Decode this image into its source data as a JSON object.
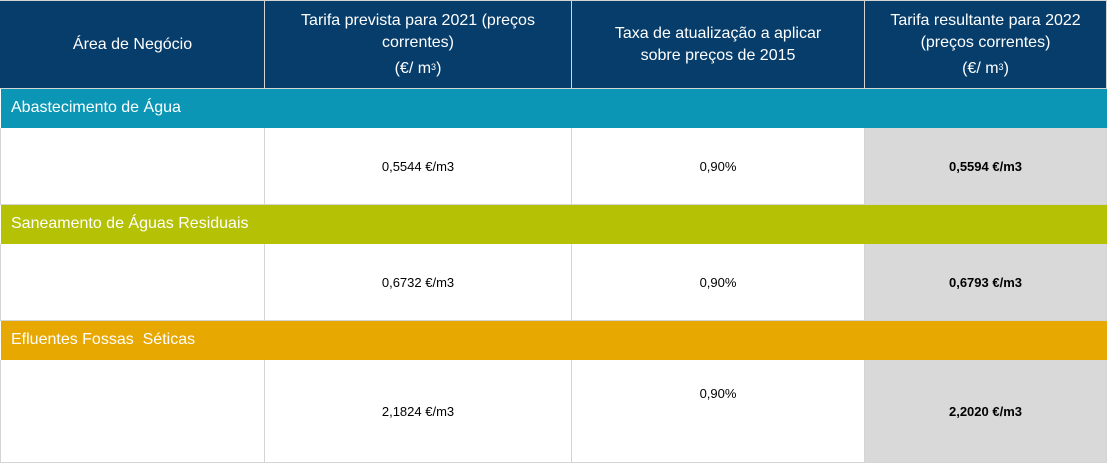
{
  "header": {
    "col_area": "Área de Negócio",
    "col_tariff_2021": "Tarifa prevista para 2021 (preços correntes)",
    "col_tariff_2021_unit": "(€/ m",
    "col_rate": "Taxa de atualização a aplicar sobre preços de 2015",
    "col_tariff_2022": "Tarifa resultante para 2022 (preços correntes)",
    "col_tariff_2022_unit": "(€/ m",
    "unit_superscript": "3",
    "unit_close": ")"
  },
  "sections": [
    {
      "title": "Abastecimento de Água",
      "color": "#0b96b5",
      "row": {
        "area": "",
        "tariff_2021": "0,5544 €/m3",
        "rate": "0,90%",
        "tariff_2022": "0,5594 €/m3"
      }
    },
    {
      "title": "Saneamento de Águas Residuais",
      "color": "#b5c104",
      "row": {
        "area": "",
        "tariff_2021": "0,6732 €/m3",
        "rate": "0,90%",
        "tariff_2022": "0,6793 €/m3"
      }
    },
    {
      "title": "Efluentes Fossas  Séticas",
      "color": "#e8a802",
      "row": {
        "area": "",
        "tariff_2021": "2,1824 €/m3",
        "rate": "0,90%",
        "tariff_2022": "2,2020 €/m3"
      }
    }
  ],
  "colors": {
    "header_bg": "#063d6b",
    "result_bg": "#d9d9d9"
  }
}
